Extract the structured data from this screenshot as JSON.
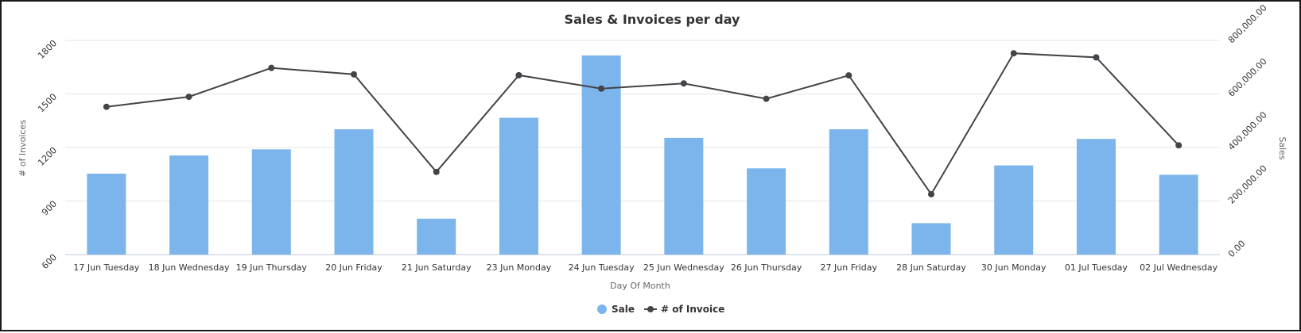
{
  "chart_data": {
    "type": "bar",
    "title": "Sales & Invoices per day",
    "xlabel": "Day Of Month",
    "ylabel_left": "# of Invoices",
    "ylabel_right": "Sales",
    "categories": [
      "17 Jun Tuesday",
      "18 Jun Wednesday",
      "19 Jun Thursday",
      "20 Jun Friday",
      "21 Jun Saturday",
      "23 Jun Monday",
      "24 Jun Tuesday",
      "25 Jun Wednesday",
      "26 Jun Thursday",
      "27 Jun Friday",
      "28 Jun Saturday",
      "30 Jun Monday",
      "01 Jul Tuesday",
      "02 Jul Wednesday"
    ],
    "left_axis": {
      "min": 600,
      "max": 1800,
      "ticks": [
        "600",
        "900",
        "1200",
        "1500",
        "1800"
      ]
    },
    "right_axis": {
      "min": 0,
      "max": 800000,
      "ticks": [
        "0.00",
        "200,000.00",
        "400,000.00",
        "600,000.00",
        "800,000.00"
      ]
    },
    "grid": true,
    "legend_position": "bottom-center",
    "series": [
      {
        "name": "Sale",
        "type": "bar",
        "axis": "right",
        "color": "#7cb5ec",
        "values": [
          302000,
          370000,
          393000,
          468000,
          134000,
          511000,
          744000,
          436000,
          322000,
          468000,
          117000,
          333000,
          432000,
          298000
        ]
      },
      {
        "name": "# of Invoice",
        "type": "line",
        "axis": "left",
        "color": "#434348",
        "values": [
          1428,
          1484,
          1646,
          1610,
          1063,
          1605,
          1530,
          1559,
          1473,
          1604,
          938,
          1728,
          1705,
          1212
        ]
      }
    ]
  }
}
